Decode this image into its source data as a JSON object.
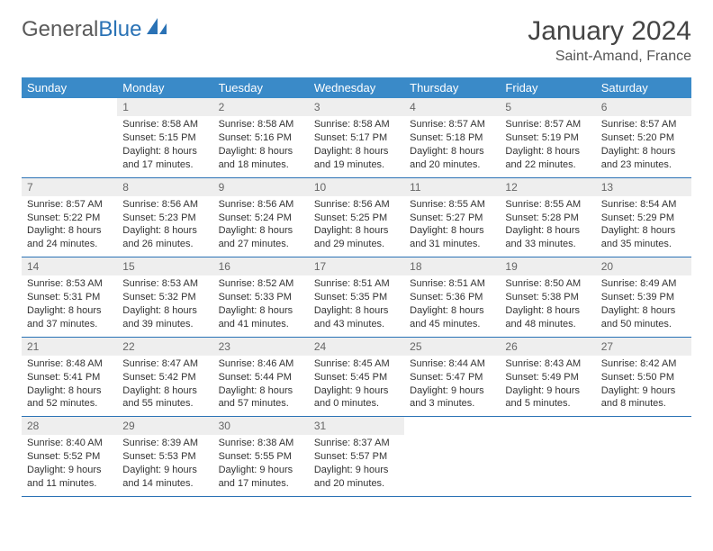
{
  "logo": {
    "text1": "General",
    "text2": "Blue"
  },
  "title": "January 2024",
  "location": "Saint-Amand, France",
  "header_bg": "#3a8ac8",
  "daynum_bg": "#eeeeee",
  "rule_color": "#2a72b5",
  "weekdays": [
    "Sunday",
    "Monday",
    "Tuesday",
    "Wednesday",
    "Thursday",
    "Friday",
    "Saturday"
  ],
  "weeks": [
    [
      {
        "n": "",
        "sr": "",
        "ss": "",
        "dl": ""
      },
      {
        "n": "1",
        "sr": "Sunrise: 8:58 AM",
        "ss": "Sunset: 5:15 PM",
        "dl": "Daylight: 8 hours and 17 minutes."
      },
      {
        "n": "2",
        "sr": "Sunrise: 8:58 AM",
        "ss": "Sunset: 5:16 PM",
        "dl": "Daylight: 8 hours and 18 minutes."
      },
      {
        "n": "3",
        "sr": "Sunrise: 8:58 AM",
        "ss": "Sunset: 5:17 PM",
        "dl": "Daylight: 8 hours and 19 minutes."
      },
      {
        "n": "4",
        "sr": "Sunrise: 8:57 AM",
        "ss": "Sunset: 5:18 PM",
        "dl": "Daylight: 8 hours and 20 minutes."
      },
      {
        "n": "5",
        "sr": "Sunrise: 8:57 AM",
        "ss": "Sunset: 5:19 PM",
        "dl": "Daylight: 8 hours and 22 minutes."
      },
      {
        "n": "6",
        "sr": "Sunrise: 8:57 AM",
        "ss": "Sunset: 5:20 PM",
        "dl": "Daylight: 8 hours and 23 minutes."
      }
    ],
    [
      {
        "n": "7",
        "sr": "Sunrise: 8:57 AM",
        "ss": "Sunset: 5:22 PM",
        "dl": "Daylight: 8 hours and 24 minutes."
      },
      {
        "n": "8",
        "sr": "Sunrise: 8:56 AM",
        "ss": "Sunset: 5:23 PM",
        "dl": "Daylight: 8 hours and 26 minutes."
      },
      {
        "n": "9",
        "sr": "Sunrise: 8:56 AM",
        "ss": "Sunset: 5:24 PM",
        "dl": "Daylight: 8 hours and 27 minutes."
      },
      {
        "n": "10",
        "sr": "Sunrise: 8:56 AM",
        "ss": "Sunset: 5:25 PM",
        "dl": "Daylight: 8 hours and 29 minutes."
      },
      {
        "n": "11",
        "sr": "Sunrise: 8:55 AM",
        "ss": "Sunset: 5:27 PM",
        "dl": "Daylight: 8 hours and 31 minutes."
      },
      {
        "n": "12",
        "sr": "Sunrise: 8:55 AM",
        "ss": "Sunset: 5:28 PM",
        "dl": "Daylight: 8 hours and 33 minutes."
      },
      {
        "n": "13",
        "sr": "Sunrise: 8:54 AM",
        "ss": "Sunset: 5:29 PM",
        "dl": "Daylight: 8 hours and 35 minutes."
      }
    ],
    [
      {
        "n": "14",
        "sr": "Sunrise: 8:53 AM",
        "ss": "Sunset: 5:31 PM",
        "dl": "Daylight: 8 hours and 37 minutes."
      },
      {
        "n": "15",
        "sr": "Sunrise: 8:53 AM",
        "ss": "Sunset: 5:32 PM",
        "dl": "Daylight: 8 hours and 39 minutes."
      },
      {
        "n": "16",
        "sr": "Sunrise: 8:52 AM",
        "ss": "Sunset: 5:33 PM",
        "dl": "Daylight: 8 hours and 41 minutes."
      },
      {
        "n": "17",
        "sr": "Sunrise: 8:51 AM",
        "ss": "Sunset: 5:35 PM",
        "dl": "Daylight: 8 hours and 43 minutes."
      },
      {
        "n": "18",
        "sr": "Sunrise: 8:51 AM",
        "ss": "Sunset: 5:36 PM",
        "dl": "Daylight: 8 hours and 45 minutes."
      },
      {
        "n": "19",
        "sr": "Sunrise: 8:50 AM",
        "ss": "Sunset: 5:38 PM",
        "dl": "Daylight: 8 hours and 48 minutes."
      },
      {
        "n": "20",
        "sr": "Sunrise: 8:49 AM",
        "ss": "Sunset: 5:39 PM",
        "dl": "Daylight: 8 hours and 50 minutes."
      }
    ],
    [
      {
        "n": "21",
        "sr": "Sunrise: 8:48 AM",
        "ss": "Sunset: 5:41 PM",
        "dl": "Daylight: 8 hours and 52 minutes."
      },
      {
        "n": "22",
        "sr": "Sunrise: 8:47 AM",
        "ss": "Sunset: 5:42 PM",
        "dl": "Daylight: 8 hours and 55 minutes."
      },
      {
        "n": "23",
        "sr": "Sunrise: 8:46 AM",
        "ss": "Sunset: 5:44 PM",
        "dl": "Daylight: 8 hours and 57 minutes."
      },
      {
        "n": "24",
        "sr": "Sunrise: 8:45 AM",
        "ss": "Sunset: 5:45 PM",
        "dl": "Daylight: 9 hours and 0 minutes."
      },
      {
        "n": "25",
        "sr": "Sunrise: 8:44 AM",
        "ss": "Sunset: 5:47 PM",
        "dl": "Daylight: 9 hours and 3 minutes."
      },
      {
        "n": "26",
        "sr": "Sunrise: 8:43 AM",
        "ss": "Sunset: 5:49 PM",
        "dl": "Daylight: 9 hours and 5 minutes."
      },
      {
        "n": "27",
        "sr": "Sunrise: 8:42 AM",
        "ss": "Sunset: 5:50 PM",
        "dl": "Daylight: 9 hours and 8 minutes."
      }
    ],
    [
      {
        "n": "28",
        "sr": "Sunrise: 8:40 AM",
        "ss": "Sunset: 5:52 PM",
        "dl": "Daylight: 9 hours and 11 minutes."
      },
      {
        "n": "29",
        "sr": "Sunrise: 8:39 AM",
        "ss": "Sunset: 5:53 PM",
        "dl": "Daylight: 9 hours and 14 minutes."
      },
      {
        "n": "30",
        "sr": "Sunrise: 8:38 AM",
        "ss": "Sunset: 5:55 PM",
        "dl": "Daylight: 9 hours and 17 minutes."
      },
      {
        "n": "31",
        "sr": "Sunrise: 8:37 AM",
        "ss": "Sunset: 5:57 PM",
        "dl": "Daylight: 9 hours and 20 minutes."
      },
      {
        "n": "",
        "sr": "",
        "ss": "",
        "dl": ""
      },
      {
        "n": "",
        "sr": "",
        "ss": "",
        "dl": ""
      },
      {
        "n": "",
        "sr": "",
        "ss": "",
        "dl": ""
      }
    ]
  ]
}
